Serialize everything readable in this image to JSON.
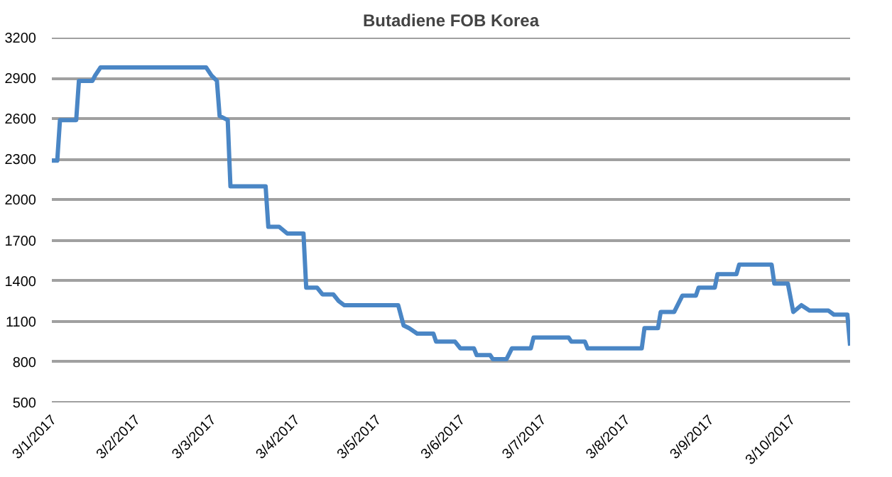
{
  "chart_data": {
    "type": "line",
    "title": "Butadiene FOB Korea",
    "x": [
      "2017-01-02",
      "2017-01-04",
      "2017-01-05",
      "2017-01-11",
      "2017-01-12",
      "2017-01-17",
      "2017-01-18",
      "2017-01-20",
      "2017-02-28",
      "2017-03-02",
      "2017-03-04",
      "2017-03-05",
      "2017-03-08",
      "2017-03-09",
      "2017-03-22",
      "2017-03-23",
      "2017-03-27",
      "2017-03-30",
      "2017-04-05",
      "2017-04-06",
      "2017-04-10",
      "2017-04-12",
      "2017-04-16",
      "2017-04-18",
      "2017-04-20",
      "2017-05-10",
      "2017-05-12",
      "2017-05-14",
      "2017-05-17",
      "2017-05-23",
      "2017-05-24",
      "2017-05-31",
      "2017-06-02",
      "2017-06-07",
      "2017-06-08",
      "2017-06-13",
      "2017-06-14",
      "2017-06-19",
      "2017-06-21",
      "2017-06-28",
      "2017-06-29",
      "2017-07-12",
      "2017-07-13",
      "2017-07-18",
      "2017-07-19",
      "2017-08-08",
      "2017-08-09",
      "2017-08-14",
      "2017-08-15",
      "2017-08-20",
      "2017-08-23",
      "2017-08-28",
      "2017-08-29",
      "2017-09-04",
      "2017-09-05",
      "2017-09-12",
      "2017-09-13",
      "2017-09-25",
      "2017-09-26",
      "2017-10-01",
      "2017-10-03",
      "2017-10-06",
      "2017-10-09",
      "2017-10-16",
      "2017-10-18",
      "2017-10-23",
      "2017-10-24"
    ],
    "series": [
      {
        "color": "#4a86c5",
        "values": [
          2290,
          2290,
          2590,
          2590,
          2880,
          2880,
          2920,
          2980,
          2980,
          2920,
          2880,
          2620,
          2590,
          2100,
          2100,
          1800,
          1800,
          1750,
          1750,
          1350,
          1350,
          1300,
          1300,
          1250,
          1220,
          1220,
          1070,
          1050,
          1010,
          1010,
          950,
          950,
          900,
          900,
          850,
          850,
          820,
          820,
          900,
          900,
          980,
          980,
          950,
          950,
          900,
          900,
          1050,
          1050,
          1170,
          1170,
          1290,
          1290,
          1350,
          1350,
          1450,
          1450,
          1520,
          1520,
          1380,
          1380,
          1170,
          1220,
          1180,
          1180,
          1150,
          1150,
          920
        ]
      }
    ],
    "xlim": [
      "2017-01-02",
      "2017-10-24"
    ],
    "xticks": [
      {
        "value": "2017-01-03",
        "label": "3/1/2017"
      },
      {
        "value": "2017-02-03",
        "label": "3/2/2017"
      },
      {
        "value": "2017-03-03",
        "label": "3/3/2017"
      },
      {
        "value": "2017-04-03",
        "label": "3/4/2017"
      },
      {
        "value": "2017-05-03",
        "label": "3/5/2017"
      },
      {
        "value": "2017-06-03",
        "label": "3/6/2017"
      },
      {
        "value": "2017-07-03",
        "label": "3/7/2017"
      },
      {
        "value": "2017-08-03",
        "label": "3/8/2017"
      },
      {
        "value": "2017-09-03",
        "label": "3/9/2017"
      },
      {
        "value": "2017-10-03",
        "label": "3/10/2017"
      }
    ],
    "ylim": [
      500,
      3200
    ],
    "yticks": [
      500,
      800,
      1100,
      1400,
      1700,
      2000,
      2300,
      2600,
      2900,
      3200
    ],
    "grid": "y",
    "marker": "none",
    "line_style": "solid"
  }
}
